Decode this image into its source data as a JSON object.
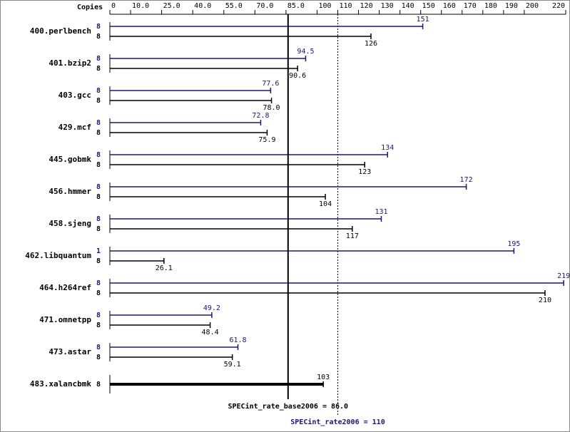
{
  "chart_data": {
    "type": "spec_bar",
    "axis_label": "Copies",
    "xlim": [
      0,
      220
    ],
    "xticks": [
      0,
      {
        "value": 10,
        "label": "10.0"
      },
      {
        "value": 25,
        "label": "25.0"
      },
      {
        "value": 40,
        "label": "40.0"
      },
      {
        "value": 55,
        "label": "55.0"
      },
      {
        "value": 70,
        "label": "70.0"
      },
      {
        "value": 85,
        "label": "85.0"
      },
      100,
      110,
      120,
      130,
      140,
      150,
      160,
      170,
      180,
      190,
      200,
      220
    ],
    "categories": [
      "400.perlbench",
      "401.bzip2",
      "403.gcc",
      "429.mcf",
      "445.gobmk",
      "456.hmmer",
      "458.sjeng",
      "462.libquantum",
      "464.h264ref",
      "471.omnetpp",
      "473.astar",
      "483.xalancbmk"
    ],
    "series": [
      {
        "color": "#191970",
        "copies": [
          8,
          8,
          8,
          8,
          8,
          8,
          8,
          1,
          8,
          8,
          8,
          null
        ],
        "values": [
          151,
          94.5,
          77.6,
          72.8,
          134,
          172,
          131,
          195,
          219,
          49.2,
          61.8,
          null
        ]
      },
      {
        "color": "#000000",
        "copies": [
          8,
          8,
          8,
          8,
          8,
          8,
          8,
          8,
          8,
          8,
          8,
          8
        ],
        "values": [
          126,
          90.6,
          78.0,
          75.9,
          123,
          104,
          117,
          26.1,
          210,
          48.4,
          59.1,
          103
        ],
        "value_labels": [
          "126",
          "90.6",
          "78.0",
          "75.9",
          "123",
          "104",
          "117",
          "26.1",
          "210",
          "48.4",
          "59.1",
          "103"
        ]
      }
    ],
    "reference_lines": [
      {
        "label": "SPECint_rate_base2006 = 86.0",
        "value": 86.0,
        "color": "#000000",
        "style": "solid"
      },
      {
        "label": "SPECint_rate2006 = 110",
        "value": 110,
        "color": "#191970",
        "style": "dotted"
      }
    ]
  }
}
